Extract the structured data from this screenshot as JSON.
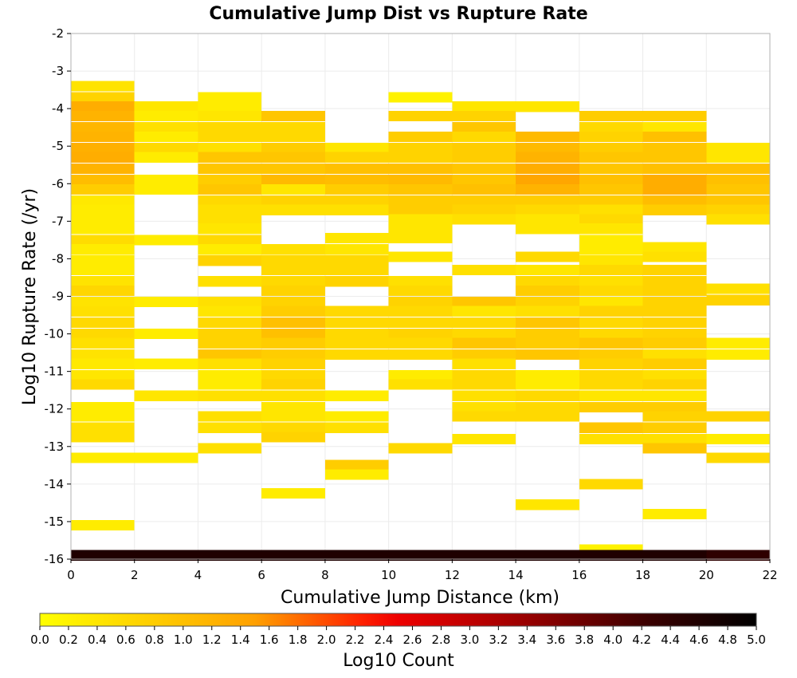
{
  "chart_data": {
    "type": "heatmap",
    "title": "Cumulative Jump Dist vs Rupture Rate",
    "xlabel": "Cumulative Jump Distance (km)",
    "ylabel": "Log10 Rupture Rate (/yr)",
    "colorbar_label": "Log10 Count",
    "xlim": [
      0,
      22
    ],
    "ylim": [
      -16,
      -2
    ],
    "x_ticks": [
      "0",
      "2",
      "4",
      "6",
      "8",
      "10",
      "12",
      "14",
      "16",
      "18",
      "20",
      "22"
    ],
    "y_ticks": [
      "-2",
      "-3",
      "-4",
      "-5",
      "-6",
      "-7",
      "-8",
      "-9",
      "-10",
      "-11",
      "-12",
      "-13",
      "-14",
      "-15",
      "-16"
    ],
    "colorbar_range": [
      0,
      5
    ],
    "colorbar_ticks": [
      "0.0",
      "0.2",
      "0.4",
      "0.6",
      "0.8",
      "1.0",
      "1.2",
      "1.4",
      "1.6",
      "1.8",
      "2.0",
      "2.2",
      "2.4",
      "2.6",
      "2.8",
      "3.0",
      "3.2",
      "3.4",
      "3.6",
      "3.8",
      "4.0",
      "4.2",
      "4.4",
      "4.6",
      "4.8",
      "5.0"
    ],
    "colormap": [
      "#ffff00",
      "#ffa500",
      "#ff0000",
      "#000000"
    ],
    "grid": true,
    "x_bin_width": 2,
    "y_bin_height": 0.28,
    "columns": [
      {
        "x": 1,
        "cells": [
          [
            -3.4,
            0.45
          ],
          [
            -3.7,
            0.7
          ],
          [
            -3.95,
            1.3
          ],
          [
            -4.2,
            1.2
          ],
          [
            -4.5,
            1.15
          ],
          [
            -4.75,
            1.2
          ],
          [
            -5.05,
            1.25
          ],
          [
            -5.3,
            1.3
          ],
          [
            -5.6,
            1.2
          ],
          [
            -5.9,
            1.05
          ],
          [
            -6.15,
            0.8
          ],
          [
            -6.45,
            0.35
          ],
          [
            -6.7,
            0.3
          ],
          [
            -6.95,
            0.3
          ],
          [
            -7.2,
            0.3
          ],
          [
            -7.5,
            0.55
          ],
          [
            -7.75,
            0.3
          ],
          [
            -8.05,
            0.3
          ],
          [
            -8.3,
            0.3
          ],
          [
            -8.6,
            0.45
          ],
          [
            -8.85,
            0.65
          ],
          [
            -9.15,
            0.45
          ],
          [
            -9.4,
            0.5
          ],
          [
            -9.7,
            0.6
          ],
          [
            -10.0,
            0.6
          ],
          [
            -10.25,
            0.5
          ],
          [
            -10.55,
            0.45
          ],
          [
            -10.8,
            0.35
          ],
          [
            -11.1,
            0.4
          ],
          [
            -11.35,
            0.6
          ],
          [
            -11.95,
            0.3
          ],
          [
            -12.2,
            0.3
          ],
          [
            -12.5,
            0.5
          ],
          [
            -12.75,
            0.5
          ],
          [
            -13.3,
            0.3
          ],
          [
            -15.1,
            0.3
          ],
          [
            -15.9,
            4.6
          ]
        ]
      },
      {
        "x": 3,
        "cells": [
          [
            -3.95,
            0.4
          ],
          [
            -4.2,
            0.3
          ],
          [
            -4.5,
            0.5
          ],
          [
            -4.75,
            0.3
          ],
          [
            -5.05,
            0.6
          ],
          [
            -5.3,
            0.3
          ],
          [
            -5.9,
            0.3
          ],
          [
            -6.15,
            0.3
          ],
          [
            -7.5,
            0.3
          ],
          [
            -9.15,
            0.3
          ],
          [
            -10.0,
            0.3
          ],
          [
            -10.8,
            0.3
          ],
          [
            -11.65,
            0.4
          ],
          [
            -13.3,
            0.3
          ],
          [
            -15.9,
            4.6
          ]
        ]
      },
      {
        "x": 5,
        "cells": [
          [
            -3.7,
            0.3
          ],
          [
            -3.95,
            0.3
          ],
          [
            -4.2,
            0.4
          ],
          [
            -4.5,
            0.6
          ],
          [
            -4.75,
            0.6
          ],
          [
            -5.05,
            0.5
          ],
          [
            -5.3,
            0.9
          ],
          [
            -5.6,
            0.9
          ],
          [
            -5.9,
            0.8
          ],
          [
            -6.15,
            0.9
          ],
          [
            -6.45,
            0.6
          ],
          [
            -6.7,
            0.5
          ],
          [
            -6.95,
            0.5
          ],
          [
            -7.2,
            0.4
          ],
          [
            -7.5,
            0.6
          ],
          [
            -7.75,
            0.3
          ],
          [
            -8.05,
            0.7
          ],
          [
            -8.6,
            0.5
          ],
          [
            -9.15,
            0.5
          ],
          [
            -9.4,
            0.4
          ],
          [
            -9.7,
            0.6
          ],
          [
            -10.0,
            0.7
          ],
          [
            -10.25,
            0.7
          ],
          [
            -10.55,
            0.9
          ],
          [
            -10.8,
            0.5
          ],
          [
            -11.1,
            0.3
          ],
          [
            -11.35,
            0.3
          ],
          [
            -11.65,
            0.5
          ],
          [
            -12.2,
            0.5
          ],
          [
            -12.5,
            0.5
          ],
          [
            -13.05,
            0.5
          ],
          [
            -15.9,
            4.6
          ]
        ]
      },
      {
        "x": 7,
        "cells": [
          [
            -4.2,
            0.9
          ],
          [
            -4.5,
            0.6
          ],
          [
            -4.75,
            0.6
          ],
          [
            -5.05,
            0.8
          ],
          [
            -5.3,
            0.9
          ],
          [
            -5.6,
            0.9
          ],
          [
            -5.9,
            1.1
          ],
          [
            -6.15,
            0.4
          ],
          [
            -6.45,
            0.7
          ],
          [
            -6.7,
            0.5
          ],
          [
            -7.75,
            0.5
          ],
          [
            -8.05,
            0.6
          ],
          [
            -8.3,
            0.6
          ],
          [
            -8.6,
            0.6
          ],
          [
            -8.85,
            0.7
          ],
          [
            -9.15,
            0.7
          ],
          [
            -9.4,
            0.8
          ],
          [
            -9.7,
            1.0
          ],
          [
            -10.0,
            1.0
          ],
          [
            -10.25,
            0.8
          ],
          [
            -10.55,
            0.8
          ],
          [
            -10.8,
            0.7
          ],
          [
            -11.1,
            0.6
          ],
          [
            -11.35,
            0.7
          ],
          [
            -11.65,
            0.5
          ],
          [
            -11.95,
            0.4
          ],
          [
            -12.2,
            0.4
          ],
          [
            -12.5,
            0.6
          ],
          [
            -12.75,
            0.7
          ],
          [
            -14.25,
            0.3
          ],
          [
            -15.9,
            4.6
          ]
        ]
      },
      {
        "x": 9,
        "cells": [
          [
            -5.05,
            0.4
          ],
          [
            -5.3,
            0.7
          ],
          [
            -5.6,
            1.0
          ],
          [
            -5.9,
            1.05
          ],
          [
            -6.15,
            0.8
          ],
          [
            -6.45,
            0.7
          ],
          [
            -6.7,
            0.5
          ],
          [
            -7.45,
            0.4
          ],
          [
            -7.75,
            0.4
          ],
          [
            -8.05,
            0.6
          ],
          [
            -8.3,
            0.6
          ],
          [
            -8.6,
            0.7
          ],
          [
            -9.4,
            0.6
          ],
          [
            -9.7,
            0.6
          ],
          [
            -10.0,
            0.6
          ],
          [
            -10.25,
            0.6
          ],
          [
            -10.55,
            0.6
          ],
          [
            -11.65,
            0.3
          ],
          [
            -12.2,
            0.3
          ],
          [
            -12.5,
            0.5
          ],
          [
            -13.5,
            0.8
          ],
          [
            -13.75,
            0.3
          ],
          [
            -15.9,
            4.6
          ]
        ]
      },
      {
        "x": 11,
        "cells": [
          [
            -3.7,
            0.2
          ],
          [
            -4.2,
            0.7
          ],
          [
            -4.75,
            0.8
          ],
          [
            -5.05,
            0.7
          ],
          [
            -5.3,
            0.7
          ],
          [
            -5.6,
            1.0
          ],
          [
            -5.9,
            1.1
          ],
          [
            -6.15,
            0.9
          ],
          [
            -6.45,
            0.8
          ],
          [
            -6.7,
            0.8
          ],
          [
            -6.95,
            0.4
          ],
          [
            -7.2,
            0.4
          ],
          [
            -7.45,
            0.4
          ],
          [
            -7.95,
            0.4
          ],
          [
            -8.6,
            0.5
          ],
          [
            -8.85,
            0.6
          ],
          [
            -9.15,
            0.7
          ],
          [
            -9.4,
            0.6
          ],
          [
            -9.7,
            0.6
          ],
          [
            -10.0,
            0.7
          ],
          [
            -10.25,
            0.6
          ],
          [
            -10.55,
            0.6
          ],
          [
            -11.1,
            0.3
          ],
          [
            -11.35,
            0.5
          ],
          [
            -13.05,
            0.6
          ],
          [
            -15.9,
            4.6
          ]
        ]
      },
      {
        "x": 13,
        "cells": [
          [
            -3.95,
            0.4
          ],
          [
            -4.2,
            0.7
          ],
          [
            -4.5,
            0.9
          ],
          [
            -4.75,
            0.6
          ],
          [
            -5.05,
            0.8
          ],
          [
            -5.3,
            0.8
          ],
          [
            -5.6,
            0.9
          ],
          [
            -5.9,
            0.9
          ],
          [
            -6.15,
            1.0
          ],
          [
            -6.45,
            0.8
          ],
          [
            -6.7,
            0.7
          ],
          [
            -6.95,
            0.5
          ],
          [
            -8.3,
            0.5
          ],
          [
            -9.15,
            0.9
          ],
          [
            -9.4,
            0.4
          ],
          [
            -9.7,
            0.6
          ],
          [
            -10.0,
            0.6
          ],
          [
            -10.25,
            0.9
          ],
          [
            -10.55,
            0.8
          ],
          [
            -10.8,
            0.5
          ],
          [
            -11.1,
            0.6
          ],
          [
            -11.35,
            0.6
          ],
          [
            -11.65,
            0.5
          ],
          [
            -11.95,
            0.5
          ],
          [
            -12.2,
            0.6
          ],
          [
            -12.8,
            0.4
          ],
          [
            -15.9,
            4.6
          ]
        ]
      },
      {
        "x": 15,
        "cells": [
          [
            -3.95,
            0.4
          ],
          [
            -4.75,
            1.1
          ],
          [
            -5.05,
            1.1
          ],
          [
            -5.3,
            1.2
          ],
          [
            -5.6,
            1.3
          ],
          [
            -5.9,
            1.4
          ],
          [
            -6.15,
            1.2
          ],
          [
            -6.45,
            0.8
          ],
          [
            -6.7,
            0.6
          ],
          [
            -6.95,
            0.4
          ],
          [
            -7.2,
            0.4
          ],
          [
            -7.95,
            0.6
          ],
          [
            -8.3,
            0.4
          ],
          [
            -8.6,
            0.6
          ],
          [
            -8.85,
            0.8
          ],
          [
            -9.15,
            0.7
          ],
          [
            -9.4,
            0.5
          ],
          [
            -9.7,
            0.9
          ],
          [
            -10.0,
            0.8
          ],
          [
            -10.25,
            0.8
          ],
          [
            -10.55,
            0.9
          ],
          [
            -11.1,
            0.3
          ],
          [
            -11.35,
            0.3
          ],
          [
            -11.65,
            0.6
          ],
          [
            -11.95,
            0.6
          ],
          [
            -12.2,
            0.6
          ],
          [
            -14.55,
            0.4
          ],
          [
            -15.9,
            4.6
          ]
        ]
      },
      {
        "x": 17,
        "cells": [
          [
            -4.2,
            0.8
          ],
          [
            -4.5,
            0.6
          ],
          [
            -4.75,
            0.7
          ],
          [
            -5.05,
            0.8
          ],
          [
            -5.3,
            0.9
          ],
          [
            -5.6,
            0.9
          ],
          [
            -5.9,
            1.0
          ],
          [
            -6.15,
            0.9
          ],
          [
            -6.45,
            0.8
          ],
          [
            -6.7,
            0.5
          ],
          [
            -6.95,
            0.6
          ],
          [
            -7.2,
            0.4
          ],
          [
            -7.5,
            0.3
          ],
          [
            -7.75,
            0.3
          ],
          [
            -8.05,
            0.4
          ],
          [
            -8.3,
            0.6
          ],
          [
            -8.6,
            0.5
          ],
          [
            -8.85,
            0.6
          ],
          [
            -9.15,
            0.4
          ],
          [
            -9.4,
            0.7
          ],
          [
            -9.7,
            0.6
          ],
          [
            -10.0,
            0.6
          ],
          [
            -10.25,
            0.9
          ],
          [
            -10.55,
            0.8
          ],
          [
            -10.8,
            0.7
          ],
          [
            -11.1,
            0.6
          ],
          [
            -11.35,
            0.6
          ],
          [
            -11.65,
            0.4
          ],
          [
            -11.95,
            0.8
          ],
          [
            -12.5,
            0.9
          ],
          [
            -12.8,
            0.5
          ],
          [
            -14.0,
            0.6
          ],
          [
            -15.75,
            0.2
          ],
          [
            -15.9,
            4.6
          ]
        ]
      },
      {
        "x": 19,
        "cells": [
          [
            -4.2,
            0.8
          ],
          [
            -4.5,
            0.4
          ],
          [
            -4.75,
            1.0
          ],
          [
            -5.05,
            0.9
          ],
          [
            -5.3,
            0.9
          ],
          [
            -5.6,
            1.0
          ],
          [
            -5.9,
            1.3
          ],
          [
            -6.15,
            1.3
          ],
          [
            -6.45,
            1.05
          ],
          [
            -6.7,
            0.8
          ],
          [
            -7.7,
            0.4
          ],
          [
            -7.95,
            0.5
          ],
          [
            -8.3,
            0.7
          ],
          [
            -8.6,
            0.7
          ],
          [
            -8.85,
            0.7
          ],
          [
            -9.15,
            0.7
          ],
          [
            -9.4,
            0.7
          ],
          [
            -9.7,
            0.7
          ],
          [
            -10.0,
            0.7
          ],
          [
            -10.25,
            0.8
          ],
          [
            -10.55,
            0.5
          ],
          [
            -10.8,
            0.8
          ],
          [
            -11.1,
            0.5
          ],
          [
            -11.35,
            0.7
          ],
          [
            -11.65,
            0.4
          ],
          [
            -11.95,
            0.8
          ],
          [
            -12.2,
            0.7
          ],
          [
            -12.5,
            0.8
          ],
          [
            -12.8,
            0.5
          ],
          [
            -13.05,
            0.9
          ],
          [
            -14.8,
            0.3
          ],
          [
            -15.9,
            4.6
          ]
        ]
      },
      {
        "x": 21,
        "cells": [
          [
            -5.05,
            0.4
          ],
          [
            -5.3,
            0.4
          ],
          [
            -5.6,
            1.0
          ],
          [
            -5.9,
            1.0
          ],
          [
            -6.15,
            0.9
          ],
          [
            -6.45,
            0.9
          ],
          [
            -6.7,
            0.7
          ],
          [
            -6.95,
            0.5
          ],
          [
            -8.8,
            0.5
          ],
          [
            -9.1,
            0.7
          ],
          [
            -10.25,
            0.3
          ],
          [
            -10.55,
            0.3
          ],
          [
            -12.2,
            0.7
          ],
          [
            -12.8,
            0.3
          ],
          [
            -13.3,
            0.6
          ],
          [
            -15.9,
            4.4
          ]
        ]
      }
    ]
  }
}
